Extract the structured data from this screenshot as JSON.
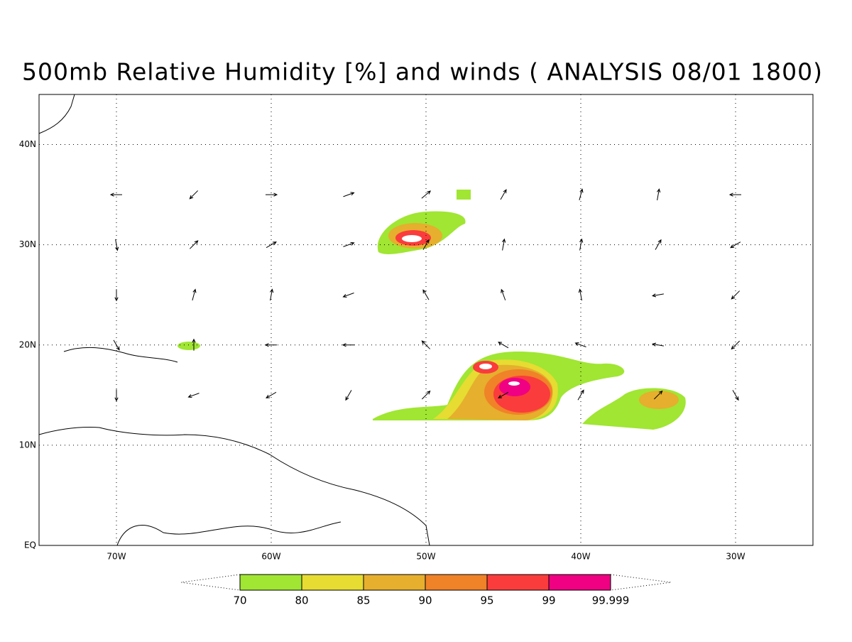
{
  "title": "500mb Relative Humidity [%] and winds ( ANALYSIS 08/01 1800)",
  "xlim": [
    -75,
    -25
  ],
  "ylim": [
    0,
    45
  ],
  "xticks": [
    {
      "value": -70,
      "label": "70W"
    },
    {
      "value": -60,
      "label": "60W"
    },
    {
      "value": -50,
      "label": "50W"
    },
    {
      "value": -40,
      "label": "40W"
    },
    {
      "value": -30,
      "label": "30W"
    }
  ],
  "yticks": [
    {
      "value": 0,
      "label": "EQ"
    },
    {
      "value": 10,
      "label": "10N"
    },
    {
      "value": 20,
      "label": "20N"
    },
    {
      "value": 30,
      "label": "30N"
    },
    {
      "value": 40,
      "label": "40N"
    }
  ],
  "colorbar": {
    "levels": [
      {
        "value": 70,
        "label": "70"
      },
      {
        "value": 80,
        "label": "80"
      },
      {
        "value": 85,
        "label": "85"
      },
      {
        "value": 90,
        "label": "90"
      },
      {
        "value": 95,
        "label": "95"
      },
      {
        "value": 99,
        "label": "99"
      },
      {
        "value": 99.999,
        "label": "99.999"
      }
    ],
    "colors": [
      "#a0e632",
      "#e6dc32",
      "#e6af2d",
      "#f08228",
      "#fa3c3c",
      "#f00082"
    ]
  },
  "winds": {
    "lons": [
      -70,
      -65,
      -60,
      -55,
      -50,
      -45,
      -40,
      -35,
      -30
    ],
    "lats": [
      35,
      30,
      25,
      20,
      15
    ],
    "angles": [
      [
        180,
        225,
        0,
        20,
        40,
        60,
        75,
        80,
        180
      ],
      [
        -80,
        45,
        30,
        20,
        60,
        80,
        80,
        60,
        210
      ],
      [
        270,
        75,
        80,
        200,
        120,
        110,
        100,
        190,
        225
      ],
      [
        300,
        90,
        180,
        180,
        135,
        150,
        160,
        170,
        225
      ],
      [
        270,
        200,
        210,
        240,
        45,
        210,
        60,
        45,
        -60
      ]
    ]
  }
}
